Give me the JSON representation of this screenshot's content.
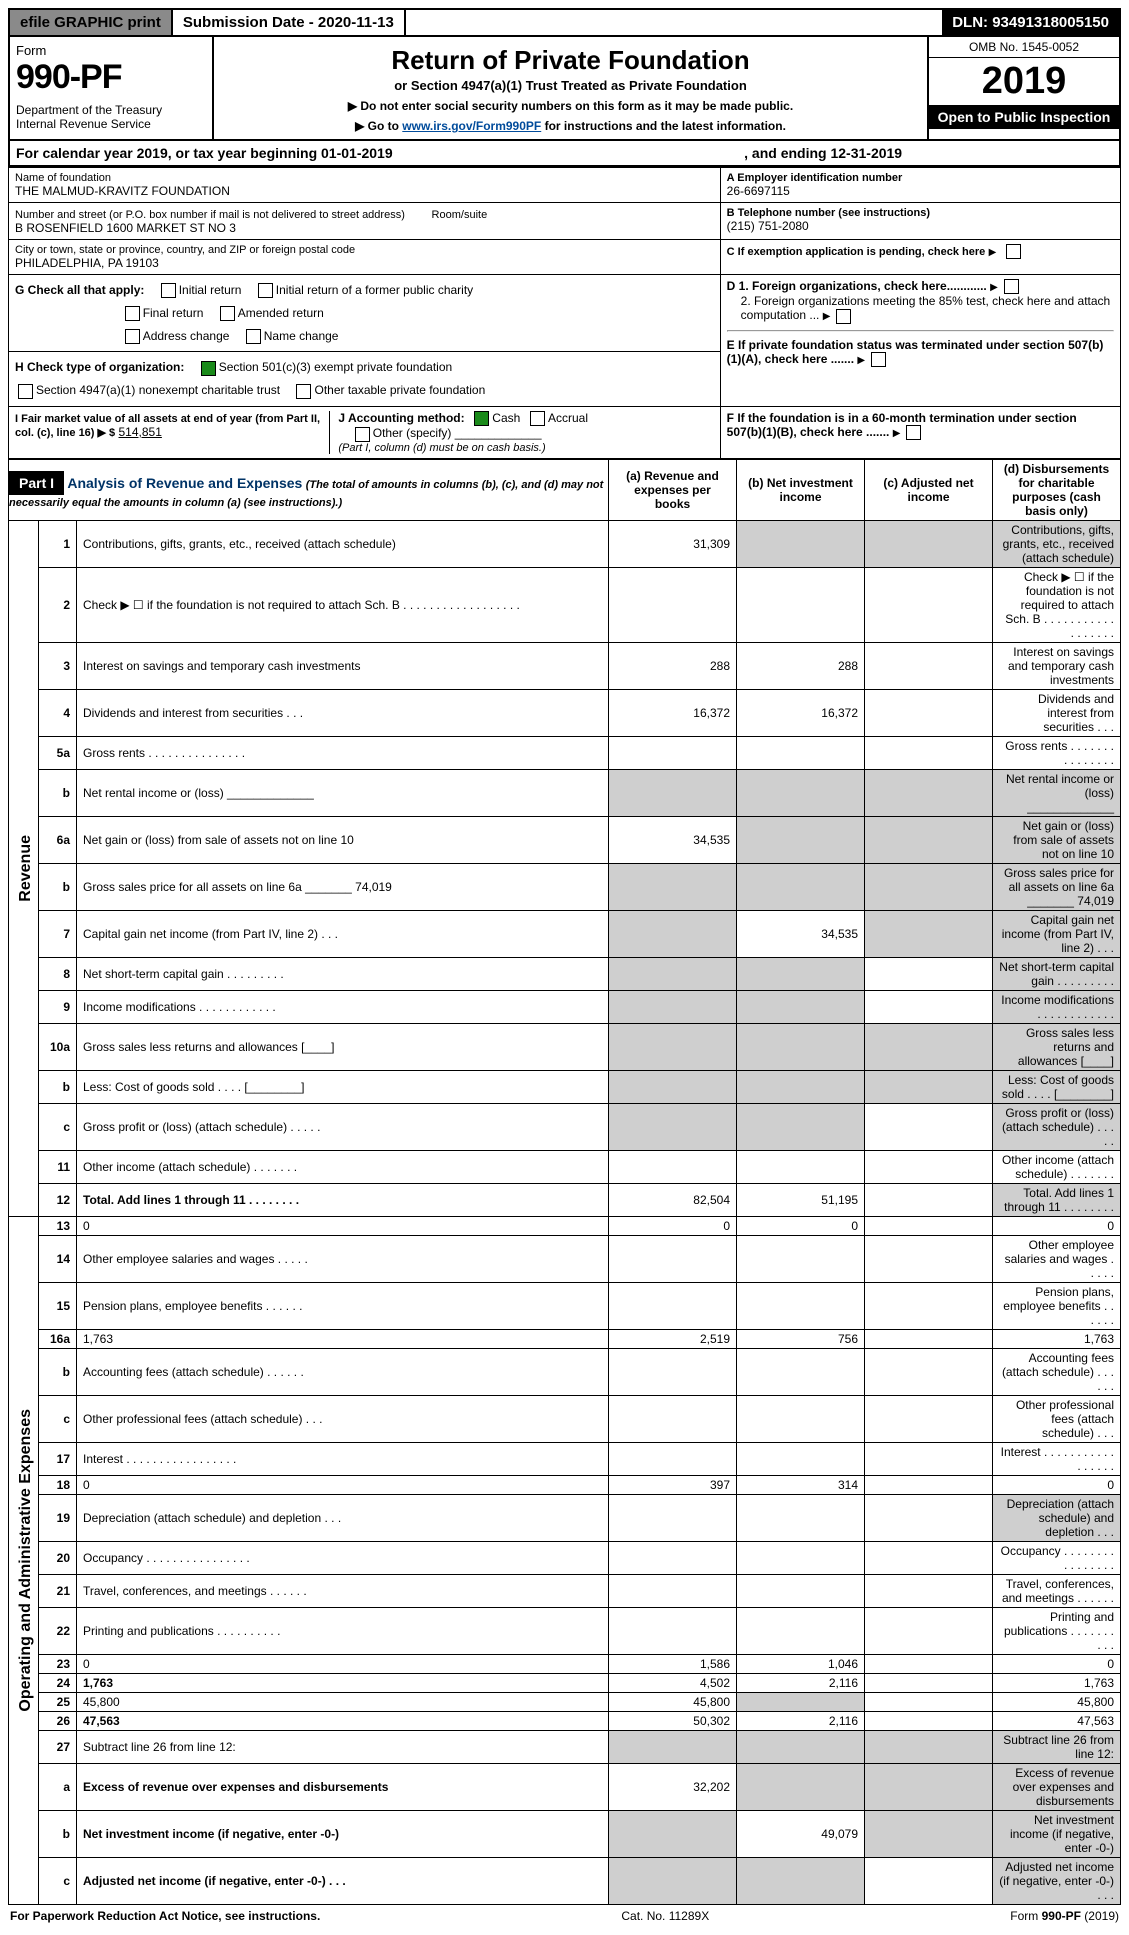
{
  "topbar": {
    "efile": "efile GRAPHIC print",
    "submission": "Submission Date - 2020-11-13",
    "dln": "DLN: 93491318005150"
  },
  "formhead": {
    "form_word": "Form",
    "form_no": "990-PF",
    "dept": "Department of the Treasury\nInternal Revenue Service",
    "title": "Return of Private Foundation",
    "subtitle": "or Section 4947(a)(1) Trust Treated as Private Foundation",
    "note1": "▶ Do not enter social security numbers on this form as it may be made public.",
    "note2_pre": "▶ Go to ",
    "note2_link": "www.irs.gov/Form990PF",
    "note2_post": " for instructions and the latest information.",
    "omb": "OMB No. 1545-0052",
    "year": "2019",
    "open": "Open to Public Inspection"
  },
  "calbar": {
    "left": "For calendar year 2019, or tax year beginning 01-01-2019",
    "right": ", and ending 12-31-2019"
  },
  "header": {
    "name_label": "Name of foundation",
    "name": "THE MALMUD-KRAVITZ FOUNDATION",
    "addr_label": "Number and street (or P.O. box number if mail is not delivered to street address)",
    "addr": "B ROSENFIELD 1600 MARKET ST NO 3",
    "room_label": "Room/suite",
    "city_label": "City or town, state or province, country, and ZIP or foreign postal code",
    "city": "PHILADELPHIA, PA  19103",
    "ein_label": "A Employer identification number",
    "ein": "26-6697115",
    "tel_label": "B Telephone number (see instructions)",
    "tel": "(215) 751-2080",
    "c_label": "C If exemption application is pending, check here",
    "g_label": "G Check all that apply:",
    "g_items": [
      "Initial return",
      "Initial return of a former public charity",
      "Final return",
      "Amended return",
      "Address change",
      "Name change"
    ],
    "h_label": "H Check type of organization:",
    "h_items": [
      "Section 501(c)(3) exempt private foundation",
      "Section 4947(a)(1) nonexempt charitable trust",
      "Other taxable private foundation"
    ],
    "i_label": "I Fair market value of all assets at end of year (from Part II, col. (c), line 16) ▶ $",
    "i_value": "514,851",
    "j_label": "J Accounting method:",
    "j_items": [
      "Cash",
      "Accrual",
      "Other (specify)"
    ],
    "j_note": "(Part I, column (d) must be on cash basis.)",
    "d1": "D 1. Foreign organizations, check here............",
    "d2": "2. Foreign organizations meeting the 85% test, check here and attach computation ...",
    "e": "E  If private foundation status was terminated under section 507(b)(1)(A), check here .......",
    "f": "F  If the foundation is in a 60-month termination under section 507(b)(1)(B), check here ......."
  },
  "part1": {
    "title": "Part I",
    "subtitle": "Analysis of Revenue and Expenses",
    "subnote": "(The total of amounts in columns (b), (c), and (d) may not necessarily equal the amounts in column (a) (see instructions).)",
    "col_a": "(a)  Revenue and expenses per books",
    "col_b": "(b)  Net investment income",
    "col_c": "(c)  Adjusted net income",
    "col_d": "(d)  Disbursements for charitable purposes (cash basis only)",
    "side_revenue": "Revenue",
    "side_expenses": "Operating and Administrative Expenses"
  },
  "rows": [
    {
      "n": "1",
      "d": "Contributions, gifts, grants, etc., received (attach schedule)",
      "a": "31,309",
      "b_s": true,
      "c_s": true,
      "d_s": true
    },
    {
      "n": "2",
      "d": "Check ▶ ☐ if the foundation is not required to attach Sch. B   .  .  .  .  .  .  .  .  .  .  .  .  .  .  .  .  .  ."
    },
    {
      "n": "3",
      "d": "Interest on savings and temporary cash investments",
      "a": "288",
      "b": "288"
    },
    {
      "n": "4",
      "d": "Dividends and interest from securities   .  .  .",
      "a": "16,372",
      "b": "16,372"
    },
    {
      "n": "5a",
      "d": "Gross rents   .  .  .  .  .  .  .  .  .  .  .  .  .  .  ."
    },
    {
      "n": "b",
      "d": "Net rental income or (loss)  _____________",
      "a_s": true,
      "b_s": true,
      "c_s": true,
      "d_s": true
    },
    {
      "n": "6a",
      "d": "Net gain or (loss) from sale of assets not on line 10",
      "a": "34,535",
      "b_s": true,
      "c_s": true,
      "d_s": true
    },
    {
      "n": "b",
      "d": "Gross sales price for all assets on line 6a _______ 74,019",
      "a_s": true,
      "b_s": true,
      "c_s": true,
      "d_s": true
    },
    {
      "n": "7",
      "d": "Capital gain net income (from Part IV, line 2)   .  .  .",
      "a_s": true,
      "b": "34,535",
      "c_s": true,
      "d_s": true
    },
    {
      "n": "8",
      "d": "Net short-term capital gain   .  .  .  .  .  .  .  .  .",
      "a_s": true,
      "b_s": true,
      "d_s": true
    },
    {
      "n": "9",
      "d": "Income modifications .  .  .  .  .  .  .  .  .  .  .  .",
      "a_s": true,
      "b_s": true,
      "d_s": true
    },
    {
      "n": "10a",
      "d": "Gross sales less returns and allowances  [____]",
      "a_s": true,
      "b_s": true,
      "c_s": true,
      "d_s": true
    },
    {
      "n": "b",
      "d": "Less: Cost of goods sold   .  .  .  .  [________]",
      "a_s": true,
      "b_s": true,
      "c_s": true,
      "d_s": true
    },
    {
      "n": "c",
      "d": "Gross profit or (loss) (attach schedule)   .  .  .  .  .",
      "a_s": true,
      "b_s": true,
      "d_s": true
    },
    {
      "n": "11",
      "d": "Other income (attach schedule)   .  .  .  .  .  .  ."
    },
    {
      "n": "12",
      "d": "Total. Add lines 1 through 11   .  .  .  .  .  .  .  .",
      "bold": true,
      "a": "82,504",
      "b": "51,195",
      "d_s": true
    }
  ],
  "rows2": [
    {
      "n": "13",
      "d": "0",
      "a": "0",
      "b": "0"
    },
    {
      "n": "14",
      "d": "Other employee salaries and wages   .  .  .  .  ."
    },
    {
      "n": "15",
      "d": "Pension plans, employee benefits   .  .  .  .  .  ."
    },
    {
      "n": "16a",
      "d": "1,763",
      "a": "2,519",
      "b": "756"
    },
    {
      "n": "b",
      "d": "Accounting fees (attach schedule)   .  .  .  .  .  ."
    },
    {
      "n": "c",
      "d": "Other professional fees (attach schedule)   .  .  ."
    },
    {
      "n": "17",
      "d": "Interest   .  .  .  .  .  .  .  .  .  .  .  .  .  .  .  .  ."
    },
    {
      "n": "18",
      "d": "0",
      "a": "397",
      "b": "314"
    },
    {
      "n": "19",
      "d": "Depreciation (attach schedule) and depletion   .  .  .",
      "d_s": true
    },
    {
      "n": "20",
      "d": "Occupancy .  .  .  .  .  .  .  .  .  .  .  .  .  .  .  ."
    },
    {
      "n": "21",
      "d": "Travel, conferences, and meetings .  .  .  .  .  ."
    },
    {
      "n": "22",
      "d": "Printing and publications .  .  .  .  .  .  .  .  .  ."
    },
    {
      "n": "23",
      "d": "0",
      "a": "1,586",
      "b": "1,046"
    },
    {
      "n": "24",
      "d": "1,763",
      "bold": true,
      "a": "4,502",
      "b": "2,116"
    },
    {
      "n": "25",
      "d": "45,800",
      "a": "45,800",
      "b_s": true
    },
    {
      "n": "26",
      "d": "47,563",
      "bold": true,
      "a": "50,302",
      "b": "2,116"
    },
    {
      "n": "27",
      "d": "Subtract line 26 from line 12:",
      "a_s": true,
      "b_s": true,
      "c_s": true,
      "d_s": true
    },
    {
      "n": "a",
      "d": "Excess of revenue over expenses and disbursements",
      "bold": true,
      "a": "32,202",
      "b_s": true,
      "c_s": true,
      "d_s": true
    },
    {
      "n": "b",
      "d": "Net investment income (if negative, enter -0-)",
      "bold": true,
      "a_s": true,
      "b": "49,079",
      "c_s": true,
      "d_s": true
    },
    {
      "n": "c",
      "d": "Adjusted net income (if negative, enter -0-)   .  .  .",
      "bold": true,
      "a_s": true,
      "b_s": true,
      "d_s": true
    }
  ],
  "footer": {
    "left": "For Paperwork Reduction Act Notice, see instructions.",
    "center": "Cat. No. 11289X",
    "right": "Form 990-PF (2019)"
  }
}
